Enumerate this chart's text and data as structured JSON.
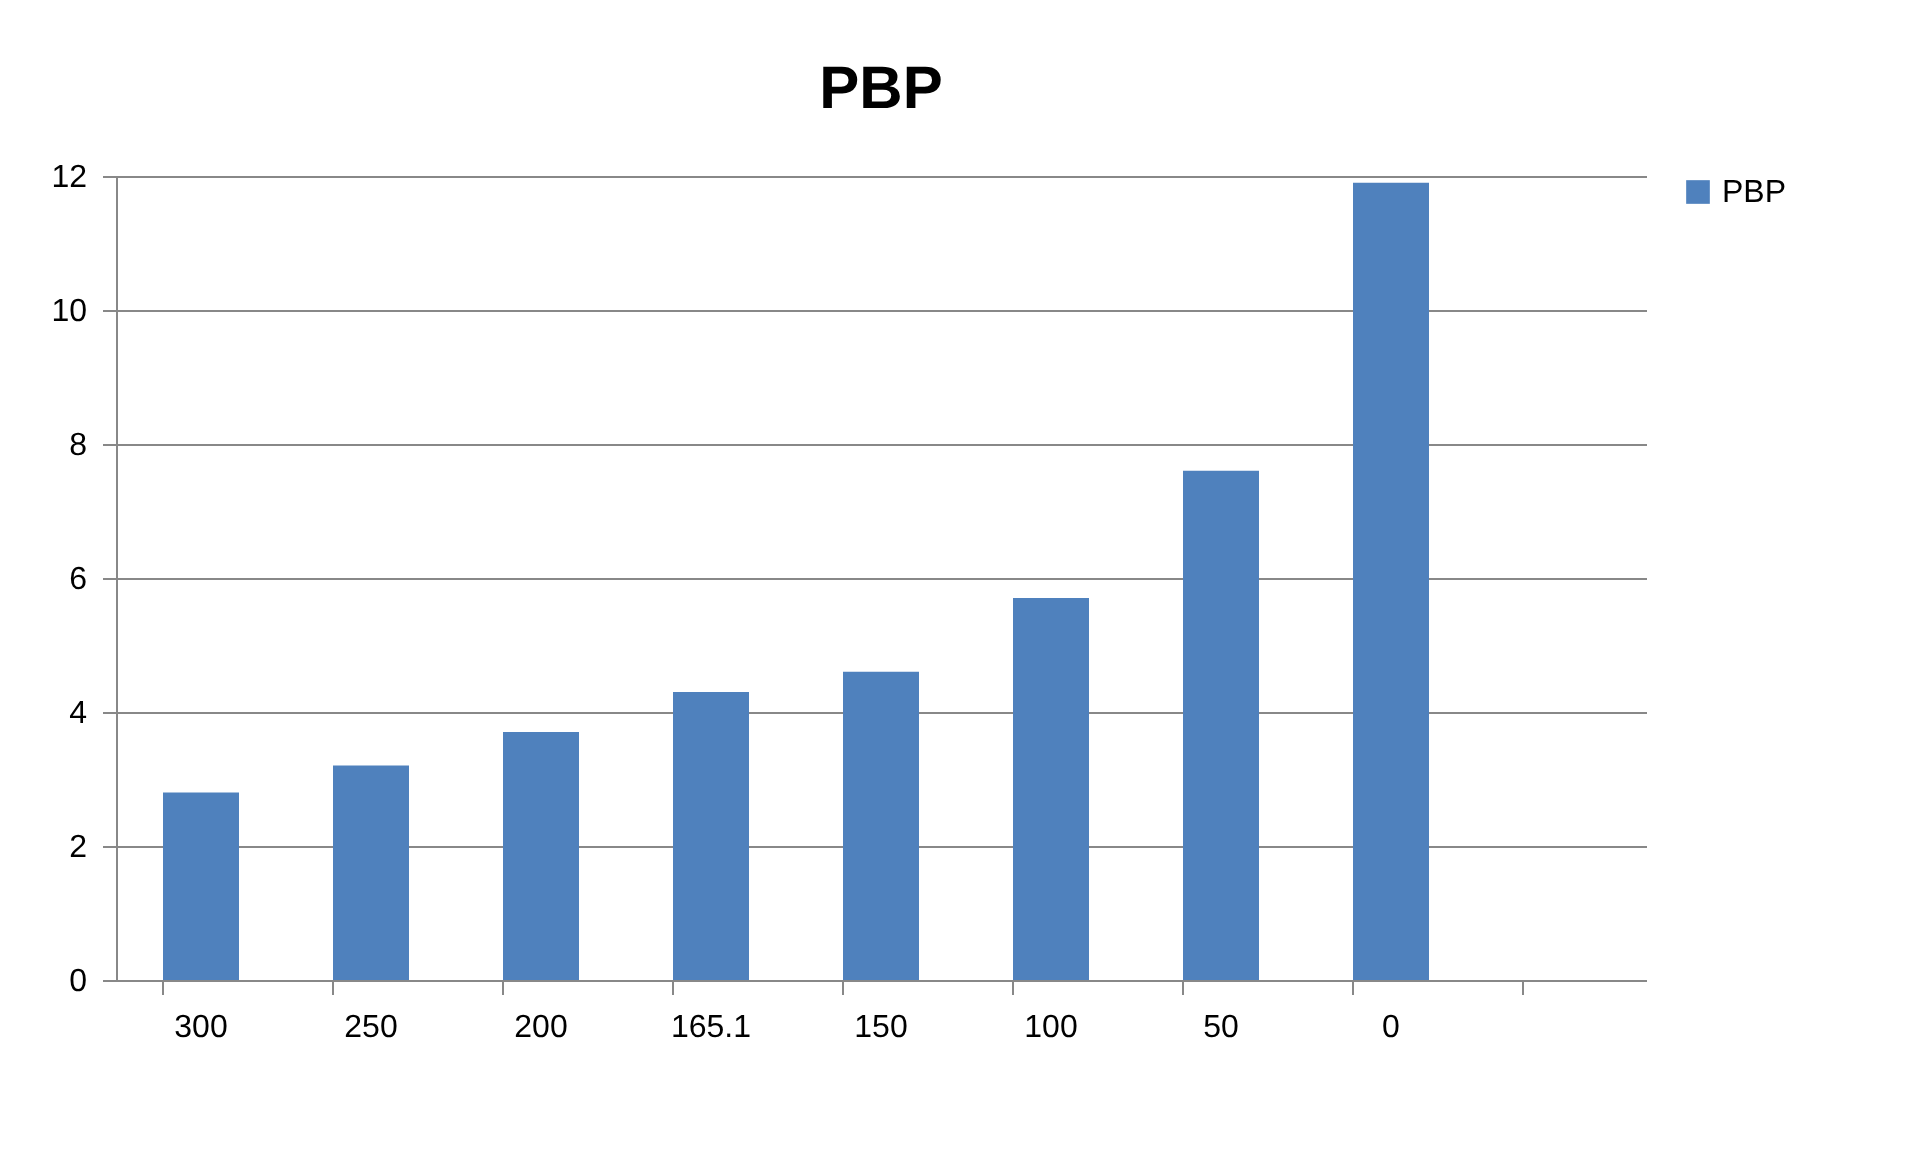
{
  "chart_data": {
    "type": "bar",
    "title": "PBP",
    "categories": [
      "300",
      "250",
      "200",
      "165.1",
      "150",
      "100",
      "50",
      "0",
      null
    ],
    "series": [
      {
        "name": "PBP",
        "color": "#4f81bd",
        "values": [
          2.8,
          3.2,
          3.7,
          4.3,
          4.6,
          5.7,
          7.6,
          11.9,
          null
        ]
      }
    ],
    "ylim": [
      0,
      12
    ],
    "yticks": [
      0,
      2,
      4,
      6,
      8,
      10,
      12
    ],
    "grid": "y",
    "legend": "right"
  }
}
